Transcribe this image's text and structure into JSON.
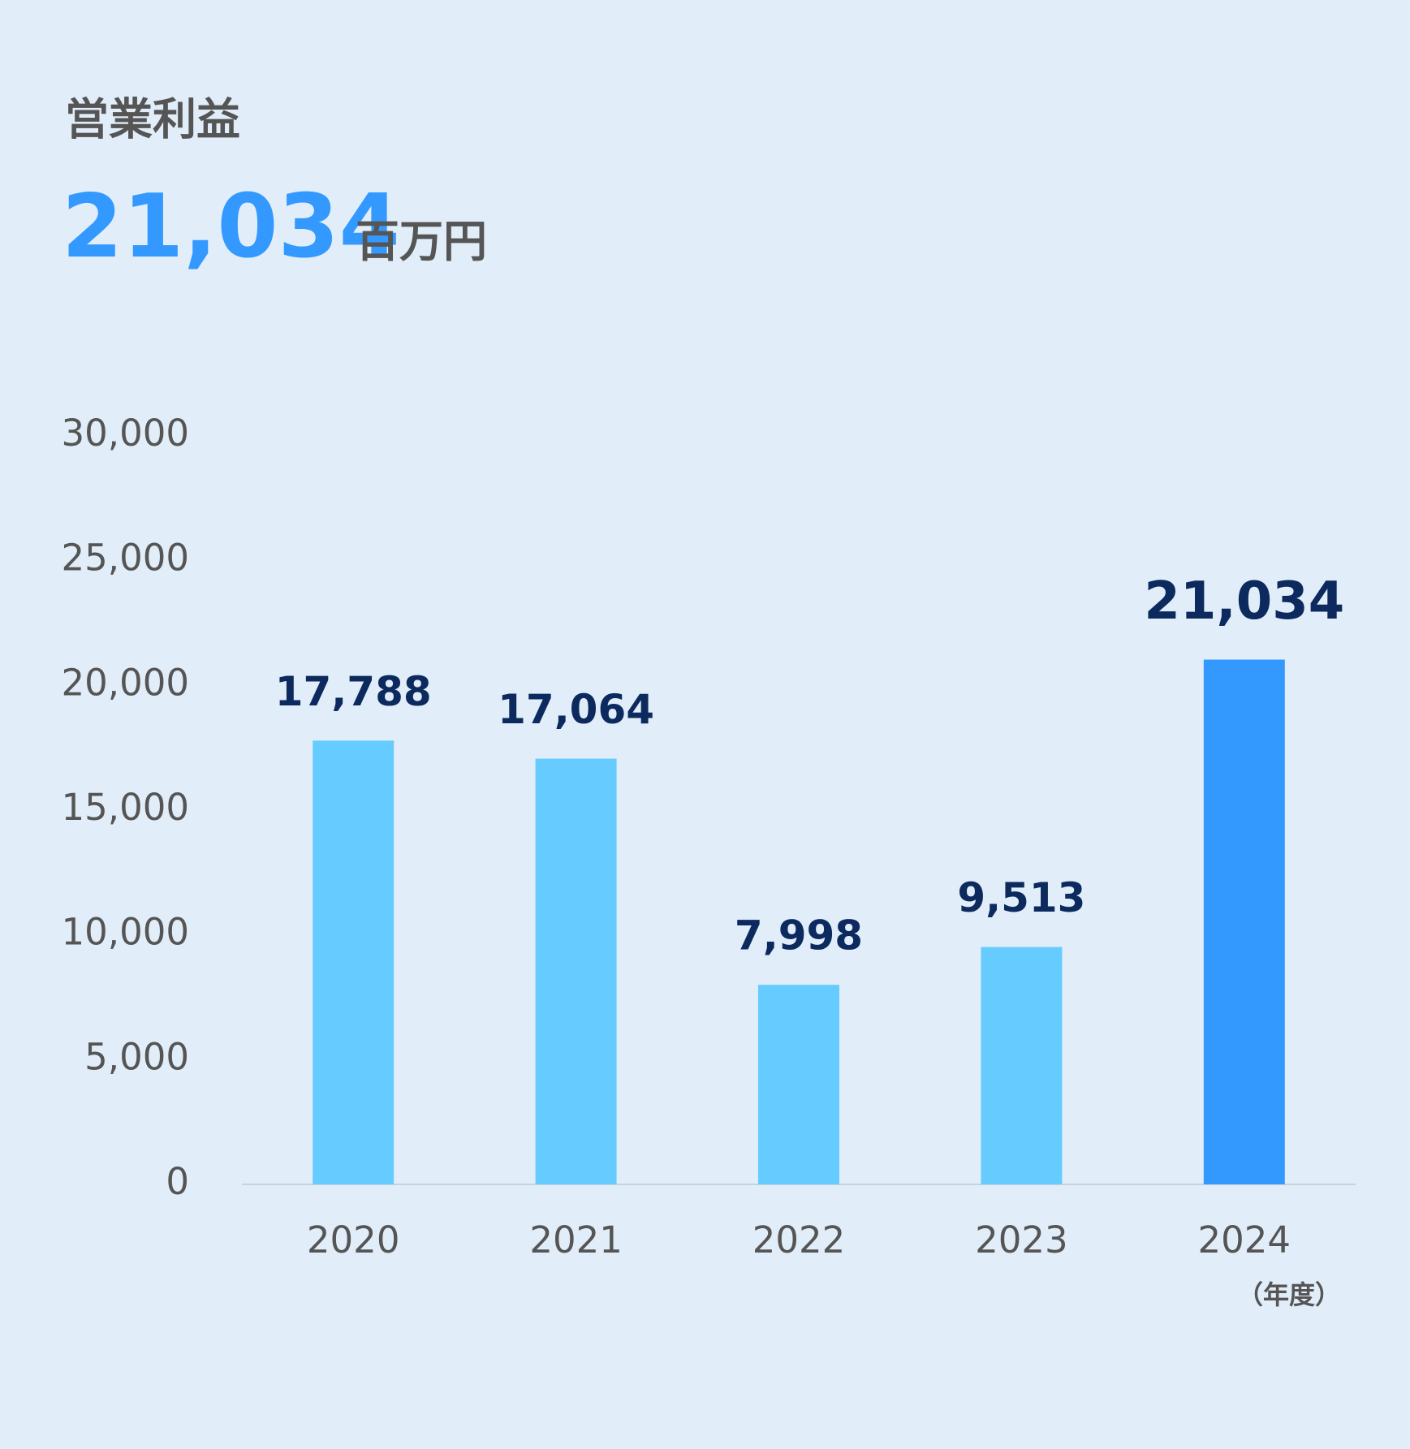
{
  "chart_data": {
    "type": "bar",
    "title": "営業利益",
    "headline": "21,034",
    "headline_unit": "百万円",
    "categories": [
      "2020",
      "2021",
      "2022",
      "2023",
      "2024"
    ],
    "x_unit": "（年度）",
    "values": [
      17788,
      17064,
      7998,
      9513,
      21034
    ],
    "value_labels": [
      "17,788",
      "17,064",
      "7,998",
      "9,513",
      "21,034"
    ],
    "colors": [
      "#66ccff",
      "#66ccff",
      "#66ccff",
      "#66ccff",
      "#3399ff"
    ],
    "ylim": [
      0,
      30000
    ],
    "yticks": [
      0,
      {
        "value": 5000,
        "label": "5,000"
      },
      {
        "value": 10000,
        "label": "10,000"
      },
      {
        "value": 15000,
        "label": "15,000"
      },
      {
        "value": 20000,
        "label": "20,000"
      },
      {
        "value": 25000,
        "label": "25,000"
      },
      {
        "value": 30000,
        "label": "30,000"
      }
    ],
    "grid": false
  }
}
